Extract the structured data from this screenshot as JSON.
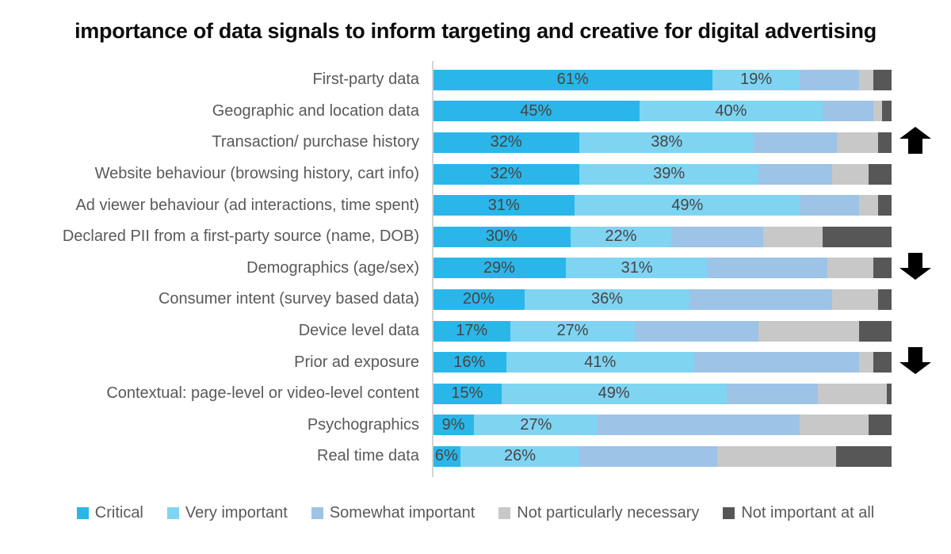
{
  "chart_data": {
    "type": "bar",
    "stacked": true,
    "orientation": "horizontal",
    "title": "importance of data signals to inform targeting and creative for digital advertising",
    "xlabel": "",
    "ylabel": "",
    "xlim": [
      0,
      100
    ],
    "grid": false,
    "legend_position": "bottom",
    "value_labels_on_first_n_segments": 2,
    "series_names": [
      "Critical",
      "Very important",
      "Somewhat important",
      "Not particularly necessary",
      "Not important at all"
    ],
    "series_colors": [
      "#2bb6e9",
      "#7fd4f2",
      "#9dc3e6",
      "#c8c8c8",
      "#575757"
    ],
    "categories": [
      "First-party data",
      "Geographic and location data",
      "Transaction/ purchase history",
      "Website behaviour (browsing history, cart info)",
      "Ad viewer behaviour (ad interactions, time spent)",
      "Declared PII from a first-party source (name, DOB)",
      "Demographics (age/sex)",
      "Consumer intent (survey based data)",
      "Device level data",
      "Prior ad exposure",
      "Contextual: page-level or video-level content",
      "Psychographics",
      "Real time data"
    ],
    "rows": [
      {
        "label": "First-party data",
        "values": [
          61,
          19,
          13,
          3,
          4
        ],
        "trend": null
      },
      {
        "label": "Geographic and location data",
        "values": [
          45,
          40,
          11,
          2,
          2
        ],
        "trend": null
      },
      {
        "label": "Transaction/ purchase history",
        "values": [
          32,
          38,
          18,
          9,
          3
        ],
        "trend": "up"
      },
      {
        "label": "Website behaviour (browsing history, cart info)",
        "values": [
          32,
          39,
          16,
          8,
          5
        ],
        "trend": null
      },
      {
        "label": "Ad viewer behaviour (ad interactions, time spent)",
        "values": [
          31,
          49,
          13,
          4,
          3
        ],
        "trend": null
      },
      {
        "label": "Declared PII from a first-party source (name, DOB)",
        "values": [
          30,
          22,
          20,
          13,
          15
        ],
        "trend": null
      },
      {
        "label": "Demographics (age/sex)",
        "values": [
          29,
          31,
          26,
          10,
          4
        ],
        "trend": "down"
      },
      {
        "label": "Consumer intent (survey based data)",
        "values": [
          20,
          36,
          31,
          10,
          3
        ],
        "trend": null
      },
      {
        "label": "Device level data",
        "values": [
          17,
          27,
          27,
          22,
          7
        ],
        "trend": null
      },
      {
        "label": "Prior ad exposure",
        "values": [
          16,
          41,
          36,
          3,
          4
        ],
        "trend": "down"
      },
      {
        "label": "Contextual: page-level or video-level content",
        "values": [
          15,
          49,
          20,
          15,
          1
        ],
        "trend": null
      },
      {
        "label": "Psychographics",
        "values": [
          9,
          27,
          44,
          15,
          5
        ],
        "trend": null
      },
      {
        "label": "Real time data",
        "values": [
          6,
          26,
          30,
          26,
          12
        ],
        "trend": null
      }
    ],
    "legend": [
      {
        "label": "Critical",
        "color": "#2bb6e9"
      },
      {
        "label": "Very important",
        "color": "#7fd4f2"
      },
      {
        "label": "Somewhat important",
        "color": "#9dc3e6"
      },
      {
        "label": "Not particularly necessary",
        "color": "#c8c8c8"
      },
      {
        "label": "Not important at all",
        "color": "#575757"
      }
    ],
    "annotation_arrow_color": "#000000"
  }
}
